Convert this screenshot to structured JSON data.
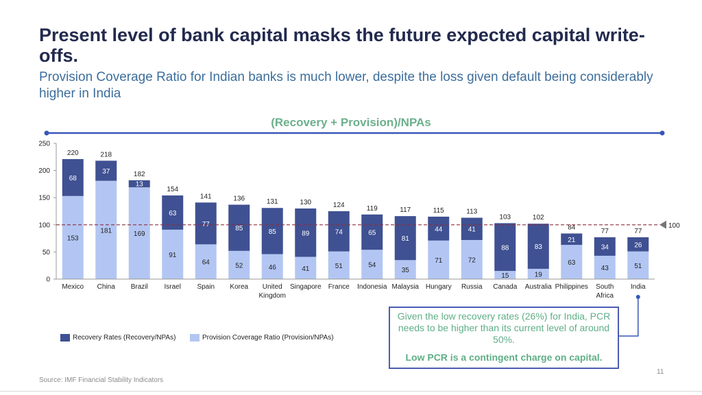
{
  "title": "Present level of bank capital masks the future expected capital write-offs.",
  "subtitle": "Provision Coverage Ratio for Indian banks is much lower, despite the loss given default being considerably higher in India",
  "chart_heading": "(Recovery + Provision)/NPAs",
  "callout": {
    "text": "Given the low recovery rates (26%) for India, PCR needs to be higher than its current level of around 50%.",
    "emphasis": "Low PCR is a contingent charge on capital."
  },
  "source": "Source: IMF Financial Stability Indicators",
  "page_number": "11",
  "colors": {
    "recovery": "#3f5192",
    "provision": "#b3c6f3",
    "title": "#232a4e",
    "subtitle": "#3d6e9c",
    "accent": "#6bb08c",
    "line": "#3857b8",
    "reference": "#8a2f3f"
  },
  "chart_data": {
    "type": "bar",
    "stacked": true,
    "categories": [
      "Mexico",
      "China",
      "Brazil",
      "Israel",
      "Spain",
      "Korea",
      "United Kingdom",
      "Singapore",
      "France",
      "Indonesia",
      "Malaysia",
      "Hungary",
      "Russia",
      "Canada",
      "Australia",
      "Philippines",
      "South Africa",
      "India"
    ],
    "category_lines": [
      [
        "Mexico"
      ],
      [
        "China"
      ],
      [
        "Brazil"
      ],
      [
        "Israel"
      ],
      [
        "Spain"
      ],
      [
        "Korea"
      ],
      [
        "United",
        "Kingdom"
      ],
      [
        "Singapore"
      ],
      [
        "France"
      ],
      [
        "Indonesia"
      ],
      [
        "Malaysia"
      ],
      [
        "Hungary"
      ],
      [
        "Russia"
      ],
      [
        "Canada"
      ],
      [
        "Australia"
      ],
      [
        "Philippines"
      ],
      [
        "South",
        "Africa"
      ],
      [
        "India"
      ]
    ],
    "series": [
      {
        "name": "Provision Coverage Ratio (Provision/NPAs)",
        "values": [
          153,
          181,
          169,
          91,
          64,
          52,
          46,
          41,
          51,
          54,
          35,
          71,
          72,
          15,
          19,
          63,
          43,
          51
        ]
      },
      {
        "name": "Recovery Rates (Recovery/NPAs)",
        "values": [
          68,
          37,
          13,
          63,
          77,
          85,
          85,
          89,
          74,
          65,
          81,
          44,
          41,
          88,
          83,
          21,
          34,
          26
        ]
      }
    ],
    "totals": [
      220,
      218,
      182,
      154,
      141,
      136,
      131,
      130,
      124,
      119,
      117,
      115,
      113,
      103,
      102,
      84,
      77,
      77
    ],
    "reference_line": {
      "value": 100,
      "label": "100"
    },
    "ylim": [
      0,
      250
    ],
    "yticks": [
      0,
      50,
      100,
      150,
      200,
      250
    ],
    "legend_order": [
      "Recovery Rates (Recovery/NPAs)",
      "Provision Coverage Ratio (Provision/NPAs)"
    ],
    "legend_position": "bottom-left"
  }
}
